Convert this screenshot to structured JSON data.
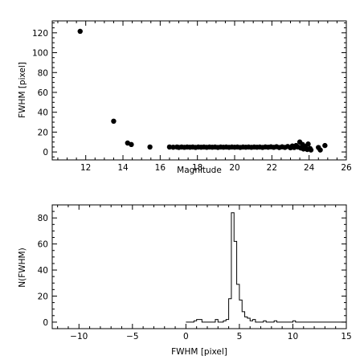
{
  "chart_data": [
    {
      "type": "scatter",
      "xlabel": "Magnitude",
      "ylabel": "FWHM [pixel]",
      "xlim": [
        10.2,
        26
      ],
      "ylim": [
        -8,
        132
      ],
      "xticks": [
        12,
        14,
        16,
        18,
        20,
        22,
        24,
        26
      ],
      "yticks": [
        0,
        20,
        40,
        60,
        80,
        100,
        120
      ],
      "x_ticklabels": [
        "12",
        "14",
        "16",
        "18",
        "20",
        "22",
        "24",
        "26"
      ],
      "y_ticklabels": [
        "0",
        "20",
        "40",
        "60",
        "80",
        "100",
        "120"
      ],
      "points": [
        [
          11.7,
          121.5
        ],
        [
          13.5,
          31.0
        ],
        [
          14.25,
          9.0
        ],
        [
          14.45,
          7.5
        ],
        [
          15.45,
          5.0
        ],
        [
          16.5,
          5.0
        ],
        [
          16.7,
          4.8
        ],
        [
          16.9,
          5.0
        ],
        [
          17.0,
          4.6
        ],
        [
          17.15,
          5.0
        ],
        [
          17.3,
          4.7
        ],
        [
          17.45,
          5.0
        ],
        [
          17.6,
          4.8
        ],
        [
          17.75,
          5.0
        ],
        [
          17.9,
          4.6
        ],
        [
          18.05,
          5.0
        ],
        [
          18.2,
          4.8
        ],
        [
          18.35,
          5.0
        ],
        [
          18.5,
          4.7
        ],
        [
          18.65,
          5.0
        ],
        [
          18.8,
          4.8
        ],
        [
          18.95,
          5.0
        ],
        [
          19.1,
          4.6
        ],
        [
          19.25,
          5.0
        ],
        [
          19.4,
          4.8
        ],
        [
          19.55,
          5.0
        ],
        [
          19.7,
          4.7
        ],
        [
          19.85,
          5.0
        ],
        [
          20.0,
          4.8
        ],
        [
          20.15,
          5.0
        ],
        [
          20.3,
          4.6
        ],
        [
          20.45,
          5.0
        ],
        [
          20.6,
          4.8
        ],
        [
          20.75,
          5.0
        ],
        [
          20.9,
          4.7
        ],
        [
          21.05,
          5.0
        ],
        [
          21.2,
          4.8
        ],
        [
          21.35,
          5.0
        ],
        [
          21.5,
          4.6
        ],
        [
          21.65,
          5.1
        ],
        [
          21.8,
          4.8
        ],
        [
          21.95,
          5.2
        ],
        [
          22.1,
          4.7
        ],
        [
          22.25,
          5.3
        ],
        [
          22.4,
          4.5
        ],
        [
          22.55,
          5.2
        ],
        [
          22.7,
          4.6
        ],
        [
          22.85,
          5.5
        ],
        [
          23.0,
          4.2
        ],
        [
          23.1,
          6.0
        ],
        [
          23.2,
          4.5
        ],
        [
          23.3,
          6.5
        ],
        [
          23.4,
          5.0
        ],
        [
          23.5,
          10.0
        ],
        [
          23.55,
          4.0
        ],
        [
          23.65,
          7.5
        ],
        [
          23.7,
          3.0
        ],
        [
          23.8,
          5.5
        ],
        [
          23.9,
          2.5
        ],
        [
          23.95,
          8.0
        ],
        [
          24.05,
          3.5
        ],
        [
          24.1,
          2.0
        ],
        [
          24.5,
          4.5
        ],
        [
          24.6,
          2.0
        ],
        [
          24.85,
          6.5
        ]
      ]
    },
    {
      "type": "histogram",
      "xlabel": "FWHM [pixel]",
      "ylabel": "N(FWHM)",
      "xlim": [
        -12.5,
        15
      ],
      "ylim": [
        -5,
        90
      ],
      "xticks": [
        -10,
        -5,
        0,
        5,
        10,
        15
      ],
      "yticks": [
        0,
        20,
        40,
        60,
        80
      ],
      "x_ticklabels": [
        "−10",
        "−5",
        "0",
        "5",
        "10",
        "15"
      ],
      "y_ticklabels": [
        "0",
        "20",
        "40",
        "60",
        "80"
      ],
      "bins": [
        [
          0,
          0
        ],
        [
          0.5,
          0
        ],
        [
          0.75,
          1
        ],
        [
          1.0,
          2
        ],
        [
          1.5,
          0
        ],
        [
          2.0,
          0
        ],
        [
          2.75,
          2
        ],
        [
          3.0,
          0
        ],
        [
          3.5,
          1
        ],
        [
          3.75,
          2
        ],
        [
          4.0,
          18
        ],
        [
          4.25,
          84
        ],
        [
          4.5,
          62
        ],
        [
          4.75,
          29
        ],
        [
          5.0,
          17
        ],
        [
          5.25,
          8
        ],
        [
          5.5,
          4
        ],
        [
          5.75,
          3
        ],
        [
          6.0,
          1
        ],
        [
          6.25,
          2
        ],
        [
          6.5,
          0
        ],
        [
          7.25,
          1
        ],
        [
          7.5,
          0
        ],
        [
          8.25,
          1
        ],
        [
          8.5,
          0
        ],
        [
          10.0,
          1
        ],
        [
          10.25,
          0
        ],
        [
          15.0,
          0
        ]
      ]
    }
  ]
}
